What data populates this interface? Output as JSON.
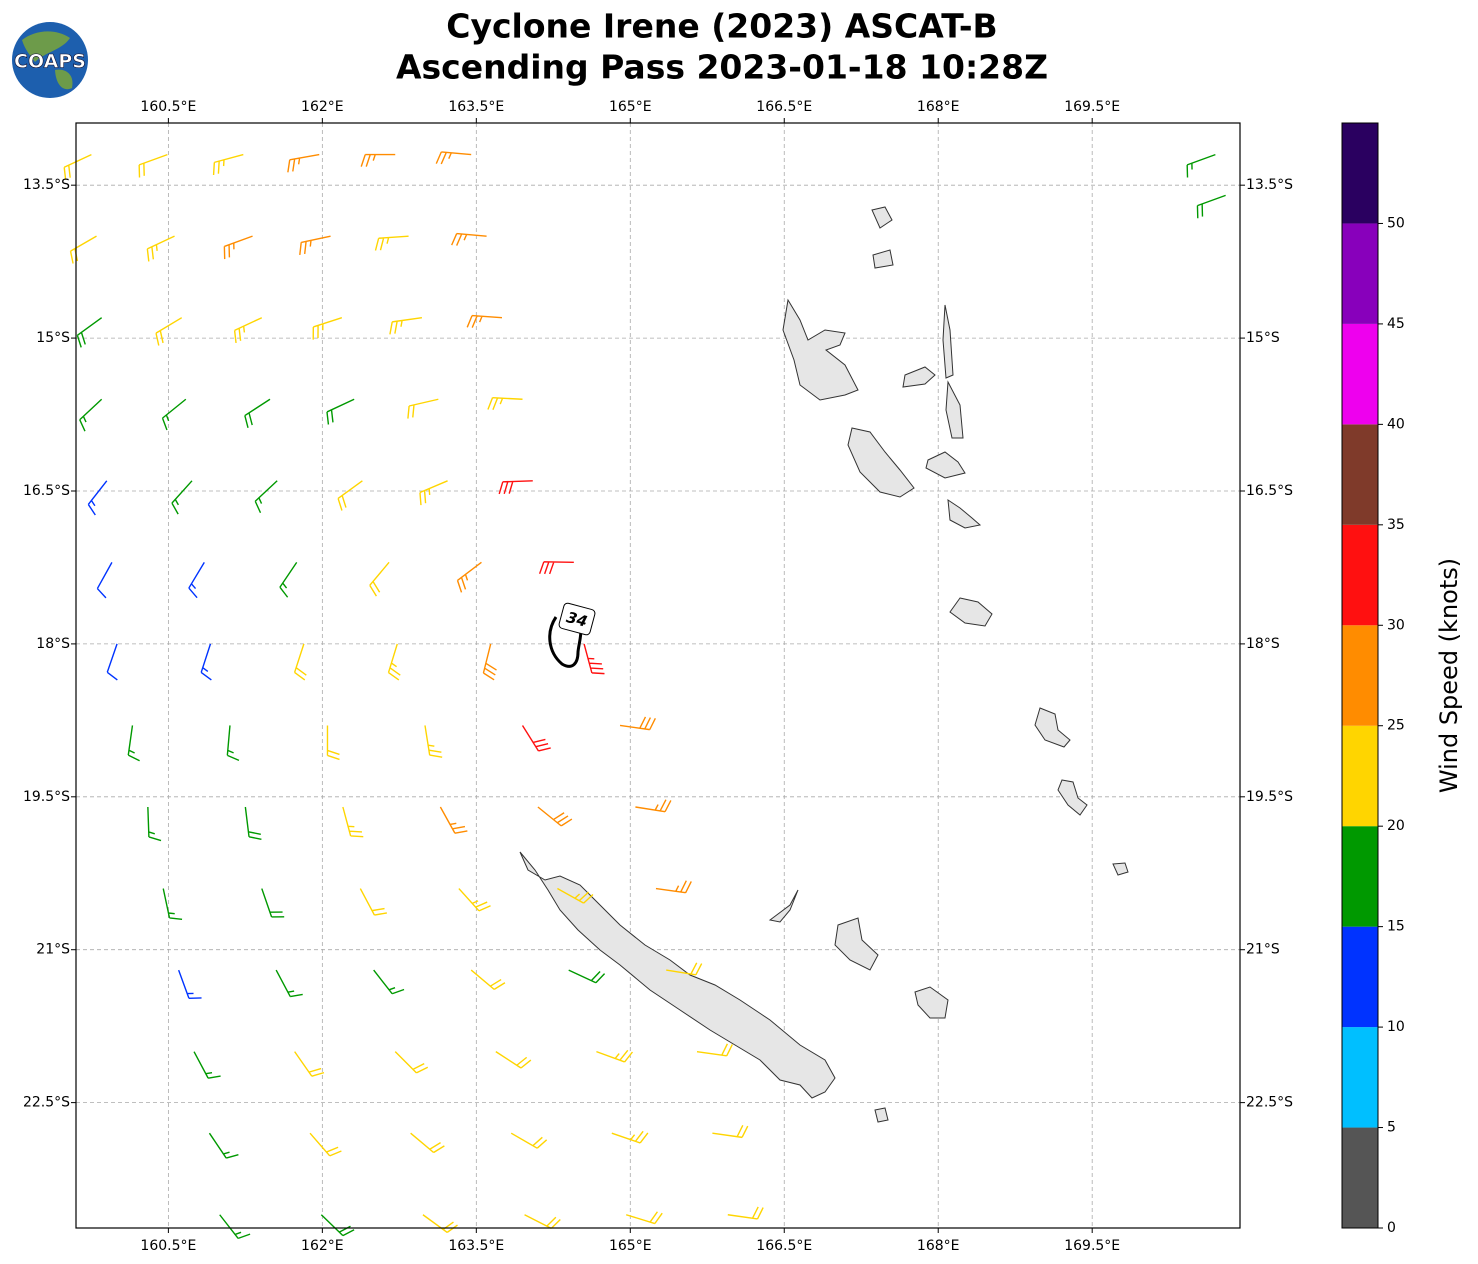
{
  "chart_data": {
    "type": "barbs",
    "logo": "COAPS",
    "title": [
      "Cyclone Irene (2023) ASCAT-B",
      "Ascending Pass 2023-01-18 10:28Z"
    ],
    "xlim": [
      159.6,
      170.94
    ],
    "ylim": [
      -23.73,
      -12.89
    ],
    "xticks": [
      {
        "value": 160.5,
        "label": "160.5°E"
      },
      {
        "value": 162,
        "label": "162°E"
      },
      {
        "value": 163.5,
        "label": "163.5°E"
      },
      {
        "value": 165,
        "label": "165°E"
      },
      {
        "value": 166.5,
        "label": "166.5°E"
      },
      {
        "value": 168,
        "label": "168°E"
      },
      {
        "value": 169.5,
        "label": "169.5°E"
      }
    ],
    "yticks": [
      {
        "value": -13.5,
        "label": "13.5°S"
      },
      {
        "value": -15,
        "label": "15°S"
      },
      {
        "value": -16.5,
        "label": "16.5°S"
      },
      {
        "value": -18,
        "label": "18°S"
      },
      {
        "value": -19.5,
        "label": "19.5°S"
      },
      {
        "value": -21,
        "label": "21°S"
      },
      {
        "value": -22.5,
        "label": "22.5°S"
      }
    ],
    "grid": true,
    "contour": {
      "level": 34
    },
    "colorbar": {
      "label": "Wind Speed (knots)",
      "bounds": [
        0,
        5,
        10,
        15,
        20,
        25,
        30,
        35,
        40,
        45,
        50,
        55
      ],
      "colors": [
        "#555555",
        "#00bfff",
        "#0033ff",
        "#009900",
        "#ffd500",
        "#ff8c00",
        "#ff1010",
        "#7f3a2a",
        "#ee00ee",
        "#8800bb",
        "#2a0060"
      ],
      "ticks": [
        0,
        5,
        10,
        15,
        20,
        25,
        30,
        35,
        40,
        45,
        50
      ]
    },
    "barbs": [
      [
        159.75,
        -13.2,
        22,
        245
      ],
      [
        160.49,
        -13.2,
        22,
        250
      ],
      [
        161.23,
        -13.2,
        23,
        255
      ],
      [
        161.97,
        -13.2,
        26,
        260
      ],
      [
        162.71,
        -13.2,
        27,
        270
      ],
      [
        163.45,
        -13.2,
        27,
        275
      ],
      [
        159.8,
        -14.0,
        21,
        240
      ],
      [
        160.56,
        -14.0,
        23,
        245
      ],
      [
        161.32,
        -14.0,
        26,
        250
      ],
      [
        162.08,
        -14.0,
        26,
        258
      ],
      [
        162.84,
        -14.0,
        24,
        266
      ],
      [
        163.6,
        -14.0,
        26,
        275
      ],
      [
        159.85,
        -14.8,
        18,
        234
      ],
      [
        160.63,
        -14.8,
        22,
        239
      ],
      [
        161.41,
        -14.8,
        24,
        245
      ],
      [
        162.19,
        -14.8,
        23,
        252
      ],
      [
        162.97,
        -14.8,
        24,
        262
      ],
      [
        163.75,
        -14.8,
        25,
        274
      ],
      [
        159.85,
        -15.6,
        16,
        227
      ],
      [
        160.67,
        -15.6,
        17,
        231
      ],
      [
        161.49,
        -15.6,
        18,
        237
      ],
      [
        162.31,
        -15.6,
        19,
        245
      ],
      [
        163.13,
        -15.6,
        22,
        257
      ],
      [
        163.95,
        -15.6,
        24,
        273
      ],
      [
        159.9,
        -16.4,
        13,
        218
      ],
      [
        160.73,
        -16.4,
        16,
        222
      ],
      [
        161.56,
        -16.4,
        17,
        227
      ],
      [
        162.39,
        -16.4,
        21,
        234
      ],
      [
        163.22,
        -16.4,
        24,
        247
      ],
      [
        164.05,
        -16.4,
        31,
        268
      ],
      [
        159.95,
        -17.2,
        12,
        209
      ],
      [
        160.85,
        -17.2,
        13,
        211
      ],
      [
        161.75,
        -17.2,
        17,
        214
      ],
      [
        162.65,
        -17.2,
        22,
        220
      ],
      [
        163.55,
        -17.2,
        27,
        233
      ],
      [
        164.45,
        -17.2,
        32,
        271
      ],
      [
        160.0,
        -18.0,
        12,
        199
      ],
      [
        160.91,
        -18.0,
        14,
        198
      ],
      [
        161.82,
        -18.0,
        21,
        198
      ],
      [
        162.73,
        -18.0,
        23,
        197
      ],
      [
        163.64,
        -18.0,
        28,
        194
      ],
      [
        164.55,
        -18.0,
        33,
        165
      ],
      [
        160.15,
        -18.8,
        16,
        188
      ],
      [
        161.1,
        -18.8,
        15,
        185
      ],
      [
        162.05,
        -18.8,
        21,
        180
      ],
      [
        163.0,
        -18.8,
        24,
        171
      ],
      [
        163.95,
        -18.8,
        31,
        148
      ],
      [
        164.9,
        -18.8,
        28,
        98
      ],
      [
        160.3,
        -19.6,
        17,
        178
      ],
      [
        161.25,
        -19.6,
        19,
        173
      ],
      [
        162.2,
        -19.6,
        23,
        165
      ],
      [
        163.15,
        -19.6,
        26,
        151
      ],
      [
        164.1,
        -19.6,
        28,
        129
      ],
      [
        165.05,
        -19.6,
        27,
        99
      ],
      [
        160.45,
        -20.4,
        17,
        168
      ],
      [
        161.41,
        -20.4,
        18,
        161
      ],
      [
        162.37,
        -20.4,
        21,
        152
      ],
      [
        163.33,
        -20.4,
        23,
        138
      ],
      [
        164.29,
        -20.4,
        24,
        119
      ],
      [
        165.25,
        -20.4,
        26,
        98
      ],
      [
        160.6,
        -21.2,
        13,
        160
      ],
      [
        161.55,
        -21.2,
        16,
        152
      ],
      [
        162.5,
        -21.2,
        17,
        142
      ],
      [
        163.45,
        -21.2,
        21,
        130
      ],
      [
        164.4,
        -21.2,
        18,
        115
      ],
      [
        165.35,
        -21.2,
        22,
        99
      ],
      [
        160.75,
        -22.0,
        17,
        152
      ],
      [
        161.73,
        -22.0,
        21,
        145
      ],
      [
        162.71,
        -22.0,
        22,
        135
      ],
      [
        163.69,
        -22.0,
        22,
        123
      ],
      [
        164.67,
        -22.0,
        23,
        110
      ],
      [
        165.65,
        -22.0,
        22,
        98
      ],
      [
        160.9,
        -22.8,
        17,
        146
      ],
      [
        161.88,
        -22.8,
        21,
        139
      ],
      [
        162.86,
        -22.8,
        22,
        130
      ],
      [
        163.84,
        -22.8,
        22,
        120
      ],
      [
        164.82,
        -22.8,
        23,
        109
      ],
      [
        165.8,
        -22.8,
        22,
        98
      ],
      [
        161.0,
        -23.6,
        17,
        142
      ],
      [
        161.99,
        -23.6,
        18,
        134
      ],
      [
        162.98,
        -23.6,
        21,
        126
      ],
      [
        163.97,
        -23.6,
        22,
        117
      ],
      [
        164.96,
        -23.6,
        22,
        107
      ],
      [
        165.95,
        -23.6,
        21,
        98
      ],
      [
        170.7,
        -13.2,
        17,
        250
      ],
      [
        170.8,
        -13.6,
        18,
        250
      ]
    ]
  }
}
